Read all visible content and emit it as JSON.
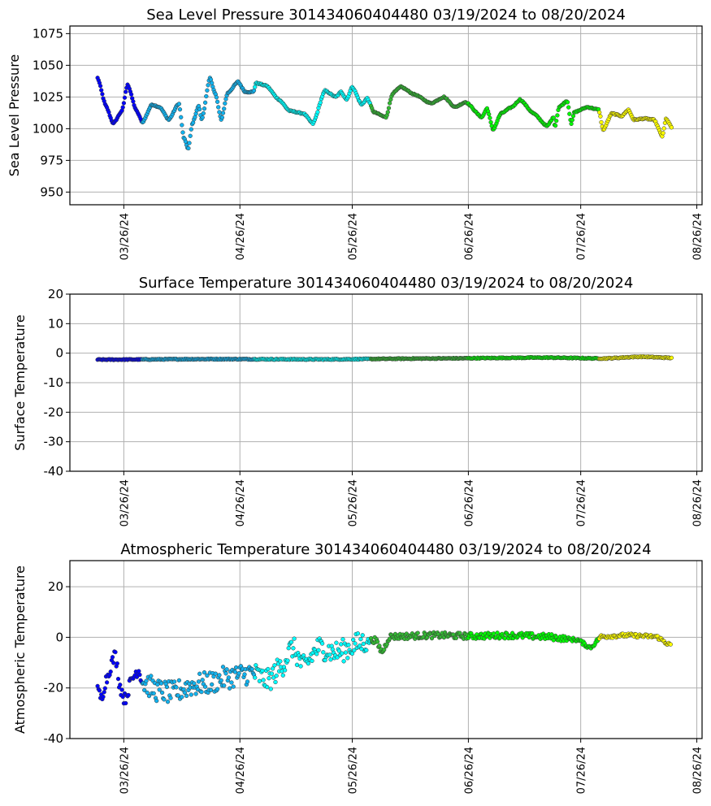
{
  "chart_data": [
    {
      "type": "scatter",
      "title": "Sea Level Pressure 301434060404480  03/19/2024 to 08/20/2024",
      "xlabel": "",
      "ylabel": "Sea Level Pressure",
      "ylim": [
        940,
        1081
      ],
      "yticks": [
        950,
        975,
        1000,
        1025,
        1050,
        1075
      ],
      "grid": true,
      "x_unit": "days since 03/19/2024",
      "keypoints": [
        [
          0,
          1040
        ],
        [
          2.2,
          1018
        ],
        [
          4.2,
          1004
        ],
        [
          6.5,
          1014
        ],
        [
          8,
          1035
        ],
        [
          10.4,
          1014
        ],
        [
          12,
          1005
        ],
        [
          14.5,
          1019
        ],
        [
          16.6,
          1017
        ],
        [
          19,
          1007
        ],
        [
          21.7,
          1020
        ],
        [
          23,
          993
        ],
        [
          24.2,
          984
        ],
        [
          25.3,
          1004
        ],
        [
          27,
          1018
        ],
        [
          27.8,
          1007
        ],
        [
          30,
          1040
        ],
        [
          31.5,
          1027
        ],
        [
          33,
          1007
        ],
        [
          34.7,
          1028
        ],
        [
          37.5,
          1037
        ],
        [
          39.4,
          1029
        ],
        [
          41.6,
          1029
        ],
        [
          42.3,
          1036
        ],
        [
          45,
          1034
        ],
        [
          48.4,
          1023
        ],
        [
          51.3,
          1014
        ],
        [
          55,
          1012
        ],
        [
          57.5,
          1004
        ],
        [
          60.7,
          1030
        ],
        [
          63.6,
          1025
        ],
        [
          65,
          1029
        ],
        [
          66.5,
          1023
        ],
        [
          68,
          1033
        ],
        [
          70.5,
          1019
        ],
        [
          72,
          1024
        ],
        [
          73.8,
          1013
        ],
        [
          77,
          1009
        ],
        [
          78.8,
          1028
        ],
        [
          81,
          1033
        ],
        [
          84.6,
          1027
        ],
        [
          89,
          1020
        ],
        [
          92.5,
          1025
        ],
        [
          95.4,
          1017
        ],
        [
          98.3,
          1021
        ],
        [
          102.6,
          1009
        ],
        [
          104,
          1016
        ],
        [
          105.6,
          999
        ],
        [
          107.7,
          1012
        ],
        [
          110.6,
          1017
        ],
        [
          112.8,
          1023
        ],
        [
          116.4,
          1012
        ],
        [
          120,
          1002
        ],
        [
          121.8,
          1009
        ],
        [
          122.1,
          1001
        ],
        [
          123.2,
          1017
        ],
        [
          125.4,
          1022
        ],
        [
          126.5,
          1004
        ],
        [
          127.3,
          1013
        ],
        [
          130.8,
          1017
        ],
        [
          133.8,
          1015
        ],
        [
          135,
          999
        ],
        [
          137.3,
          1012
        ],
        [
          140,
          1010
        ],
        [
          141.7,
          1015
        ],
        [
          143.2,
          1007
        ],
        [
          146,
          1008
        ],
        [
          148.6,
          1007
        ],
        [
          150.8,
          994
        ],
        [
          151.8,
          1008
        ],
        [
          153.3,
          1001
        ]
      ],
      "noise": [
        [
          0,
          153.3,
          0.4
        ]
      ]
    },
    {
      "type": "scatter",
      "title": "Surface Temperature 301434060404480  03/19/2024 to 08/20/2024",
      "xlabel": "",
      "ylabel": "Surface Temperature",
      "ylim": [
        -40,
        20
      ],
      "yticks": [
        -40,
        -30,
        -20,
        -10,
        0,
        10,
        20
      ],
      "grid": true,
      "x_unit": "days since 03/19/2024",
      "keypoints": [
        [
          0,
          -2.2
        ],
        [
          30,
          -2.0
        ],
        [
          60,
          -2.1
        ],
        [
          90,
          -1.8
        ],
        [
          120,
          -1.5
        ],
        [
          135,
          -1.8
        ],
        [
          145,
          -1.2
        ],
        [
          153.3,
          -1.6
        ]
      ],
      "noise": [
        [
          0,
          153.3,
          0.15
        ]
      ]
    },
    {
      "type": "scatter",
      "title": "Atmospheric Temperature 301434060404480  03/19/2024 to 08/20/2024",
      "xlabel": "",
      "ylabel": "Atmospheric Temperature",
      "ylim": [
        -40,
        30.3
      ],
      "yticks": [
        -40,
        -20,
        0,
        20
      ],
      "grid": true,
      "x_unit": "days since 03/19/2024",
      "keypoints": [
        [
          0,
          -21.3
        ],
        [
          1,
          -24
        ],
        [
          2.2,
          -17
        ],
        [
          4,
          -9.5
        ],
        [
          4.7,
          -7
        ],
        [
          6.1,
          -20
        ],
        [
          7.2,
          -24.5
        ],
        [
          9.4,
          -16
        ],
        [
          10.8,
          -12.7
        ],
        [
          12.3,
          -18
        ],
        [
          16,
          -21
        ],
        [
          20,
          -22
        ],
        [
          25,
          -19
        ],
        [
          30,
          -18
        ],
        [
          34,
          -16
        ],
        [
          37.5,
          -15
        ],
        [
          41,
          -14
        ],
        [
          45.5,
          -17
        ],
        [
          49,
          -11.6
        ],
        [
          52,
          -4
        ],
        [
          55,
          -11.6
        ],
        [
          59,
          -4
        ],
        [
          63.6,
          -6
        ],
        [
          70.9,
          -2
        ],
        [
          74,
          -1
        ],
        [
          76,
          -5.7
        ],
        [
          78,
          0.3
        ],
        [
          90,
          0.8
        ],
        [
          100,
          0.5
        ],
        [
          110,
          0.8
        ],
        [
          120,
          0.2
        ],
        [
          128,
          -1
        ],
        [
          131.6,
          -4
        ],
        [
          134.5,
          0.3
        ],
        [
          141,
          0.8
        ],
        [
          149,
          0.3
        ],
        [
          153,
          -3
        ]
      ],
      "noise": [
        [
          0,
          12,
          2.5
        ],
        [
          12,
          72,
          4.5
        ],
        [
          72,
          125,
          1.2
        ],
        [
          125,
          153.3,
          0.7
        ]
      ]
    }
  ],
  "shared": {
    "start_day_label": "03/19/2024",
    "xlim_days": [
      -7.4,
      161.4
    ],
    "xticks": [
      {
        "day": 7,
        "label": "03/26/24"
      },
      {
        "day": 38,
        "label": "04/26/24"
      },
      {
        "day": 68,
        "label": "05/26/24"
      },
      {
        "day": 99,
        "label": "06/26/24"
      },
      {
        "day": 129,
        "label": "07/26/24"
      },
      {
        "day": 160,
        "label": "08/26/24"
      }
    ],
    "color_segments": [
      {
        "from": 0,
        "to": 12,
        "color": "#0000ff"
      },
      {
        "from": 12,
        "to": 42,
        "color": "#12b2ee"
      },
      {
        "from": 42,
        "to": 73,
        "color": "#00ffff"
      },
      {
        "from": 73,
        "to": 99,
        "color": "#33bb33"
      },
      {
        "from": 99,
        "to": 134,
        "color": "#00ff00"
      },
      {
        "from": 134,
        "to": 153.4,
        "color": "#ffff00"
      }
    ],
    "samples_per_day": 4,
    "marker_edge_color": "#333333",
    "grid_color": "#b0b0b0"
  }
}
